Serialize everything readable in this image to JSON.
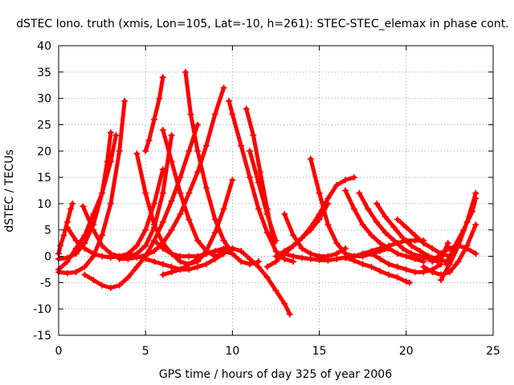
{
  "chart_data": {
    "type": "scatter",
    "title": "dSTEC Iono. truth (xmis, Lon=105, Lat=-10, h=261): STEC-STEC_elemax in phase cont.",
    "xlabel": "GPS time / hours of day 325 of year 2006",
    "ylabel": "dSTEC  / TECUs",
    "xlim": [
      0,
      25
    ],
    "ylim": [
      -15,
      40
    ],
    "xticks": [
      "0",
      "5",
      "10",
      "15",
      "20",
      "25"
    ],
    "yticks": [
      "-15",
      "-10",
      "-5",
      "0",
      "5",
      "10",
      "15",
      "20",
      "25",
      "30",
      "35",
      "40"
    ],
    "grid": true,
    "legend": "none",
    "marker": "plus",
    "color": "#ff0000",
    "series": [
      {
        "x": [
          0.0,
          0.1,
          0.3,
          0.5,
          0.7,
          0.8
        ],
        "y": [
          0.5,
          2.0,
          4.0,
          6.5,
          9.0,
          10.0
        ]
      },
      {
        "x": [
          0.0,
          0.5,
          1.0,
          1.5,
          2.0,
          2.5,
          2.8,
          3.0
        ],
        "y": [
          -0.5,
          -0.3,
          0.5,
          2.5,
          6.0,
          12.0,
          18.0,
          23.5
        ]
      },
      {
        "x": [
          0.0,
          0.5,
          1.0,
          1.5,
          2.0,
          2.5,
          3.0,
          3.5,
          3.8
        ],
        "y": [
          -3.0,
          -3.2,
          -3.0,
          -2.0,
          0.0,
          4.0,
          10.0,
          20.0,
          29.5
        ]
      },
      {
        "x": [
          0.0,
          0.5,
          1.0,
          1.5,
          2.0,
          2.5,
          3.0,
          3.3
        ],
        "y": [
          -2.5,
          -1.0,
          1.5,
          4.0,
          8.0,
          12.0,
          18.0,
          23.0
        ]
      },
      {
        "x": [
          1.4,
          2.0,
          2.5,
          3.0,
          3.5,
          4.0,
          4.5,
          5.0,
          5.5,
          6.0,
          6.5
        ],
        "y": [
          9.5,
          5.0,
          2.0,
          0.5,
          0.0,
          0.0,
          0.5,
          2.0,
          5.5,
          12.0,
          23.0
        ]
      },
      {
        "x": [
          0.5,
          1.0,
          1.5,
          2.0,
          2.5,
          3.0,
          3.5,
          4.0,
          4.5,
          5.0,
          5.5,
          6.0
        ],
        "y": [
          5.5,
          3.0,
          1.5,
          0.5,
          0.0,
          -0.2,
          0.0,
          0.5,
          2.0,
          5.0,
          10.0,
          16.5
        ]
      },
      {
        "x": [
          1.5,
          2.0,
          2.5,
          3.0,
          3.5,
          4.0,
          4.5,
          5.0,
          5.5,
          6.0,
          6.5,
          7.0,
          7.5,
          8.0
        ],
        "y": [
          -3.5,
          -4.5,
          -5.5,
          -6.0,
          -5.5,
          -4.0,
          -2.0,
          0.0,
          3.0,
          6.5,
          10.5,
          15.0,
          20.0,
          25.0
        ]
      },
      {
        "x": [
          4.5,
          5.0,
          5.5,
          6.0,
          6.5,
          7.0,
          7.5,
          8.0,
          8.5,
          9.0,
          9.5,
          10.0
        ],
        "y": [
          19.5,
          12.0,
          6.0,
          2.5,
          0.5,
          -1.0,
          -1.5,
          -1.0,
          1.0,
          4.5,
          9.0,
          14.5
        ]
      },
      {
        "x": [
          5.0,
          5.2,
          5.5,
          5.8,
          6.0
        ],
        "y": [
          20.0,
          22.0,
          26.0,
          30.0,
          34.0
        ]
      },
      {
        "x": [
          6.0,
          6.5,
          7.0,
          7.5,
          8.0,
          8.5,
          9.0,
          9.5
        ],
        "y": [
          24.0,
          18.0,
          12.0,
          7.0,
          3.0,
          1.0,
          0.0,
          0.5
        ]
      },
      {
        "x": [
          3.5,
          4.0,
          4.5,
          5.0,
          5.5,
          6.0,
          6.5,
          7.0,
          7.5,
          8.0,
          8.5,
          9.0,
          9.5
        ],
        "y": [
          -0.5,
          -0.5,
          -0.2,
          0.2,
          1.0,
          2.5,
          5.0,
          8.0,
          12.0,
          16.0,
          21.0,
          27.0,
          32.0
        ]
      },
      {
        "x": [
          7.3,
          7.6,
          8.0,
          8.5,
          9.0,
          9.5,
          10.0,
          10.5,
          11.0,
          11.5
        ],
        "y": [
          35.0,
          27.0,
          20.0,
          13.0,
          7.0,
          3.0,
          0.5,
          -1.0,
          -1.5,
          -1.0
        ]
      },
      {
        "x": [
          4.5,
          5.0,
          5.5,
          6.0,
          6.5,
          7.0,
          7.5,
          8.0,
          8.5,
          9.0,
          9.5
        ],
        "y": [
          0.0,
          -0.5,
          -1.0,
          -1.5,
          -2.0,
          -2.5,
          -2.5,
          -2.0,
          -1.5,
          -0.5,
          0.5
        ]
      },
      {
        "x": [
          5.5,
          6.0,
          6.5,
          7.0,
          7.5,
          8.0,
          8.5,
          9.0,
          9.5,
          10.0,
          10.5,
          11.0,
          11.5,
          12.0,
          12.5,
          13.0,
          13.3
        ],
        "y": [
          3.0,
          1.5,
          0.5,
          0.0,
          0.0,
          0.0,
          0.5,
          1.0,
          1.5,
          1.5,
          1.0,
          -0.5,
          -2.0,
          -4.0,
          -6.5,
          -9.0,
          -11.0
        ]
      },
      {
        "x": [
          6.0,
          6.5,
          7.0,
          7.5,
          8.0,
          8.5,
          9.0,
          9.5,
          10.0
        ],
        "y": [
          -3.5,
          -3.0,
          -2.5,
          -1.5,
          -0.5,
          0.5,
          1.0,
          1.0,
          0.5
        ]
      },
      {
        "x": [
          9.8,
          10.0,
          10.5,
          11.0,
          11.5,
          12.0,
          12.5,
          13.0,
          13.5
        ],
        "y": [
          29.5,
          27.0,
          21.0,
          15.0,
          9.0,
          4.5,
          1.0,
          -0.5,
          -1.0
        ]
      },
      {
        "x": [
          10.8,
          11.2,
          11.6,
          12.0,
          12.4
        ],
        "y": [
          28.0,
          23.0,
          16.0,
          9.0,
          2.5
        ]
      },
      {
        "x": [
          11.0,
          11.5,
          12.0,
          12.5
        ],
        "y": [
          20.0,
          14.0,
          8.0,
          3.0
        ]
      },
      {
        "x": [
          12.0,
          12.5,
          13.0,
          13.5,
          14.0,
          14.5,
          15.0,
          15.5,
          16.0,
          16.5,
          17.0
        ],
        "y": [
          -2.0,
          -1.0,
          0.5,
          2.0,
          3.5,
          5.5,
          8.0,
          11.0,
          13.5,
          14.5,
          15.0
        ]
      },
      {
        "x": [
          12.5,
          13.0,
          13.5,
          14.0,
          14.5,
          15.0,
          15.5
        ],
        "y": [
          0.0,
          1.0,
          2.0,
          3.5,
          5.0,
          7.0,
          10.0
        ]
      },
      {
        "x": [
          13.0,
          13.5,
          14.0,
          14.5,
          15.0,
          15.5,
          16.0,
          16.5
        ],
        "y": [
          8.0,
          4.0,
          1.5,
          0.5,
          0.0,
          0.0,
          0.5,
          1.5
        ]
      },
      {
        "x": [
          14.5,
          15.0,
          15.5,
          16.0,
          16.5,
          17.0,
          17.5,
          18.0,
          18.5,
          19.0
        ],
        "y": [
          18.5,
          12.0,
          6.0,
          2.5,
          0.5,
          0.0,
          0.0,
          0.5,
          1.0,
          1.5
        ]
      },
      {
        "x": [
          13.0,
          13.5,
          14.0,
          14.5,
          15.0,
          15.5,
          16.0,
          16.5,
          17.0,
          17.5,
          18.0,
          18.5,
          19.0,
          19.5,
          20.0,
          20.5,
          21.0
        ],
        "y": [
          0.5,
          0.0,
          -0.3,
          -0.5,
          -0.7,
          -0.8,
          -0.5,
          -0.2,
          0.0,
          0.5,
          1.0,
          1.5,
          2.0,
          2.5,
          3.0,
          3.0,
          3.0
        ]
      },
      {
        "x": [
          16.5,
          17.0,
          17.5,
          18.0,
          18.5,
          19.0,
          19.5,
          20.0,
          20.5,
          21.0
        ],
        "y": [
          12.5,
          9.0,
          6.0,
          4.0,
          2.5,
          1.5,
          0.5,
          0.0,
          -0.5,
          -1.0
        ]
      },
      {
        "x": [
          17.3,
          17.8,
          18.3,
          18.8,
          19.3,
          19.8,
          20.3,
          20.8,
          21.3,
          21.8
        ],
        "y": [
          12.0,
          9.0,
          6.5,
          4.5,
          3.0,
          1.5,
          0.5,
          0.0,
          -0.5,
          -1.0
        ]
      },
      {
        "x": [
          18.3,
          18.8,
          19.3,
          19.8,
          20.3,
          20.8,
          21.3,
          21.8,
          22.3
        ],
        "y": [
          10.0,
          7.5,
          5.5,
          3.5,
          2.0,
          1.0,
          0.0,
          -0.5,
          -1.0
        ]
      },
      {
        "x": [
          19.5,
          20.0,
          20.5,
          21.0,
          21.5,
          22.0,
          22.5
        ],
        "y": [
          7.0,
          5.5,
          4.0,
          2.5,
          1.5,
          0.5,
          0.0
        ]
      },
      {
        "x": [
          16.5,
          17.0,
          17.5,
          18.0,
          18.5,
          19.0,
          19.5,
          20.0,
          20.2
        ],
        "y": [
          -0.3,
          -0.8,
          -1.5,
          -2.0,
          -2.8,
          -3.5,
          -4.0,
          -4.8,
          -5.0
        ]
      },
      {
        "x": [
          18.0,
          18.5,
          19.0,
          19.5,
          20.0,
          20.5,
          21.0,
          21.5,
          22.0
        ],
        "y": [
          0.5,
          -0.5,
          -1.5,
          -2.0,
          -2.5,
          -3.0,
          -3.0,
          -2.5,
          -1.5
        ]
      },
      {
        "x": [
          21.0,
          21.5,
          22.0,
          22.5,
          23.0,
          23.5,
          24.0
        ],
        "y": [
          -2.0,
          -3.0,
          -3.5,
          -3.0,
          -1.0,
          2.0,
          6.0
        ]
      },
      {
        "x": [
          22.0,
          22.5,
          23.0,
          23.5,
          24.0
        ],
        "y": [
          -4.5,
          -1.5,
          2.0,
          6.5,
          12.0
        ]
      },
      {
        "x": [
          22.3,
          22.8,
          23.3,
          23.8,
          24.0
        ],
        "y": [
          -1.5,
          2.0,
          5.0,
          8.5,
          11.0
        ]
      },
      {
        "x": [
          21.5,
          22.0,
          22.5,
          23.0,
          23.5,
          24.0
        ],
        "y": [
          -1.0,
          0.5,
          1.5,
          2.0,
          1.5,
          0.5
        ]
      },
      {
        "x": [
          22.0,
          22.2,
          22.4
        ],
        "y": [
          -0.5,
          1.0,
          2.5
        ]
      }
    ]
  }
}
